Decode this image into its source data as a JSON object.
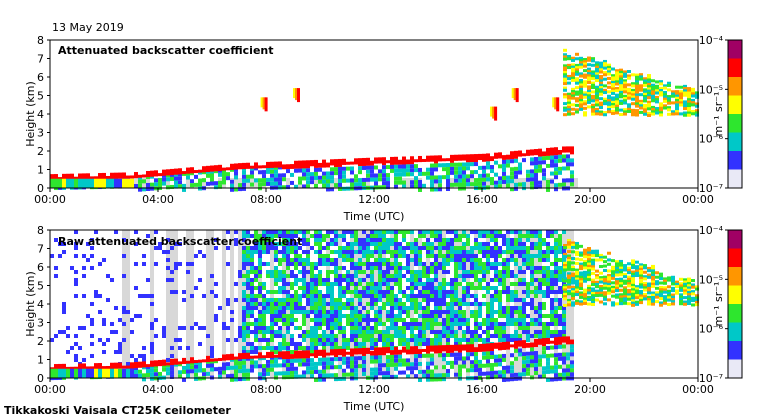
{
  "date_label": "13 May 2019",
  "footer": "Tikkakoski Vaisala CT25K ceilometer",
  "colors": {
    "noise": "#d8d8d8",
    "scale": [
      "#e9e9f6",
      "#3232ff",
      "#00c8c8",
      "#2ee62e",
      "#ffff00",
      "#ff9600",
      "#ff0000",
      "#a00064"
    ]
  },
  "chart_data": [
    {
      "type": "heatmap",
      "title": "Attenuated backscatter coefficient",
      "xlabel": "Time (UTC)",
      "ylabel": "Height (km)",
      "x_ticks": [
        "00:00",
        "04:00",
        "08:00",
        "12:00",
        "16:00",
        "20:00",
        "00:00"
      ],
      "x_range_hours": [
        0,
        24
      ],
      "y_ticks": [
        "0",
        "1",
        "2",
        "3",
        "4",
        "5",
        "6",
        "7",
        "8"
      ],
      "ylim": [
        0,
        8
      ],
      "colorbar": {
        "label": "m⁻¹ sr⁻¹",
        "ticks": [
          "10⁻⁴",
          "10⁻⁵",
          "10⁻⁶",
          "10⁻⁷"
        ],
        "range_log10": [
          -7,
          -4
        ]
      },
      "features": {
        "boundary_layer_top_km": [
          [
            0,
            0.5
          ],
          [
            3,
            0.6
          ],
          [
            7,
            1.1
          ],
          [
            12,
            1.4
          ],
          [
            16,
            1.6
          ],
          [
            19,
            2.0
          ]
        ],
        "high_cloud": {
          "start_h": 19,
          "end_h": 24,
          "base_km": 4.0,
          "top_km": 7.2
        },
        "elevated_layers": [
          [
            7.8,
            4.5
          ],
          [
            9.0,
            5.0
          ],
          [
            16.3,
            4.0
          ],
          [
            17.1,
            5.0
          ],
          [
            18.6,
            4.5
          ]
        ]
      }
    },
    {
      "type": "heatmap",
      "title": "Raw attenuated backscatter coefficient",
      "xlabel": "Time (UTC)",
      "ylabel": "Height (km)",
      "x_ticks": [
        "00:00",
        "04:00",
        "08:00",
        "12:00",
        "16:00",
        "20:00",
        "00:00"
      ],
      "x_range_hours": [
        0,
        24
      ],
      "y_ticks": [
        "0",
        "1",
        "2",
        "3",
        "4",
        "5",
        "6",
        "7",
        "8"
      ],
      "ylim": [
        0,
        8
      ],
      "colorbar": {
        "label": "m⁻¹ sr⁻¹",
        "ticks": [
          "10⁻⁴",
          "10⁻⁵",
          "10⁻⁶",
          "10⁻⁷"
        ],
        "range_log10": [
          -7,
          -4
        ]
      },
      "features": {
        "boundary_layer_top_km": [
          [
            0,
            0.5
          ],
          [
            3,
            0.6
          ],
          [
            7,
            1.1
          ],
          [
            12,
            1.4
          ],
          [
            16,
            1.6
          ],
          [
            19,
            2.0
          ]
        ],
        "high_cloud": {
          "start_h": 19,
          "end_h": 24,
          "base_km": 4.0,
          "top_km": 7.2
        },
        "noise_band_hours": [
          7,
          19
        ]
      }
    }
  ]
}
